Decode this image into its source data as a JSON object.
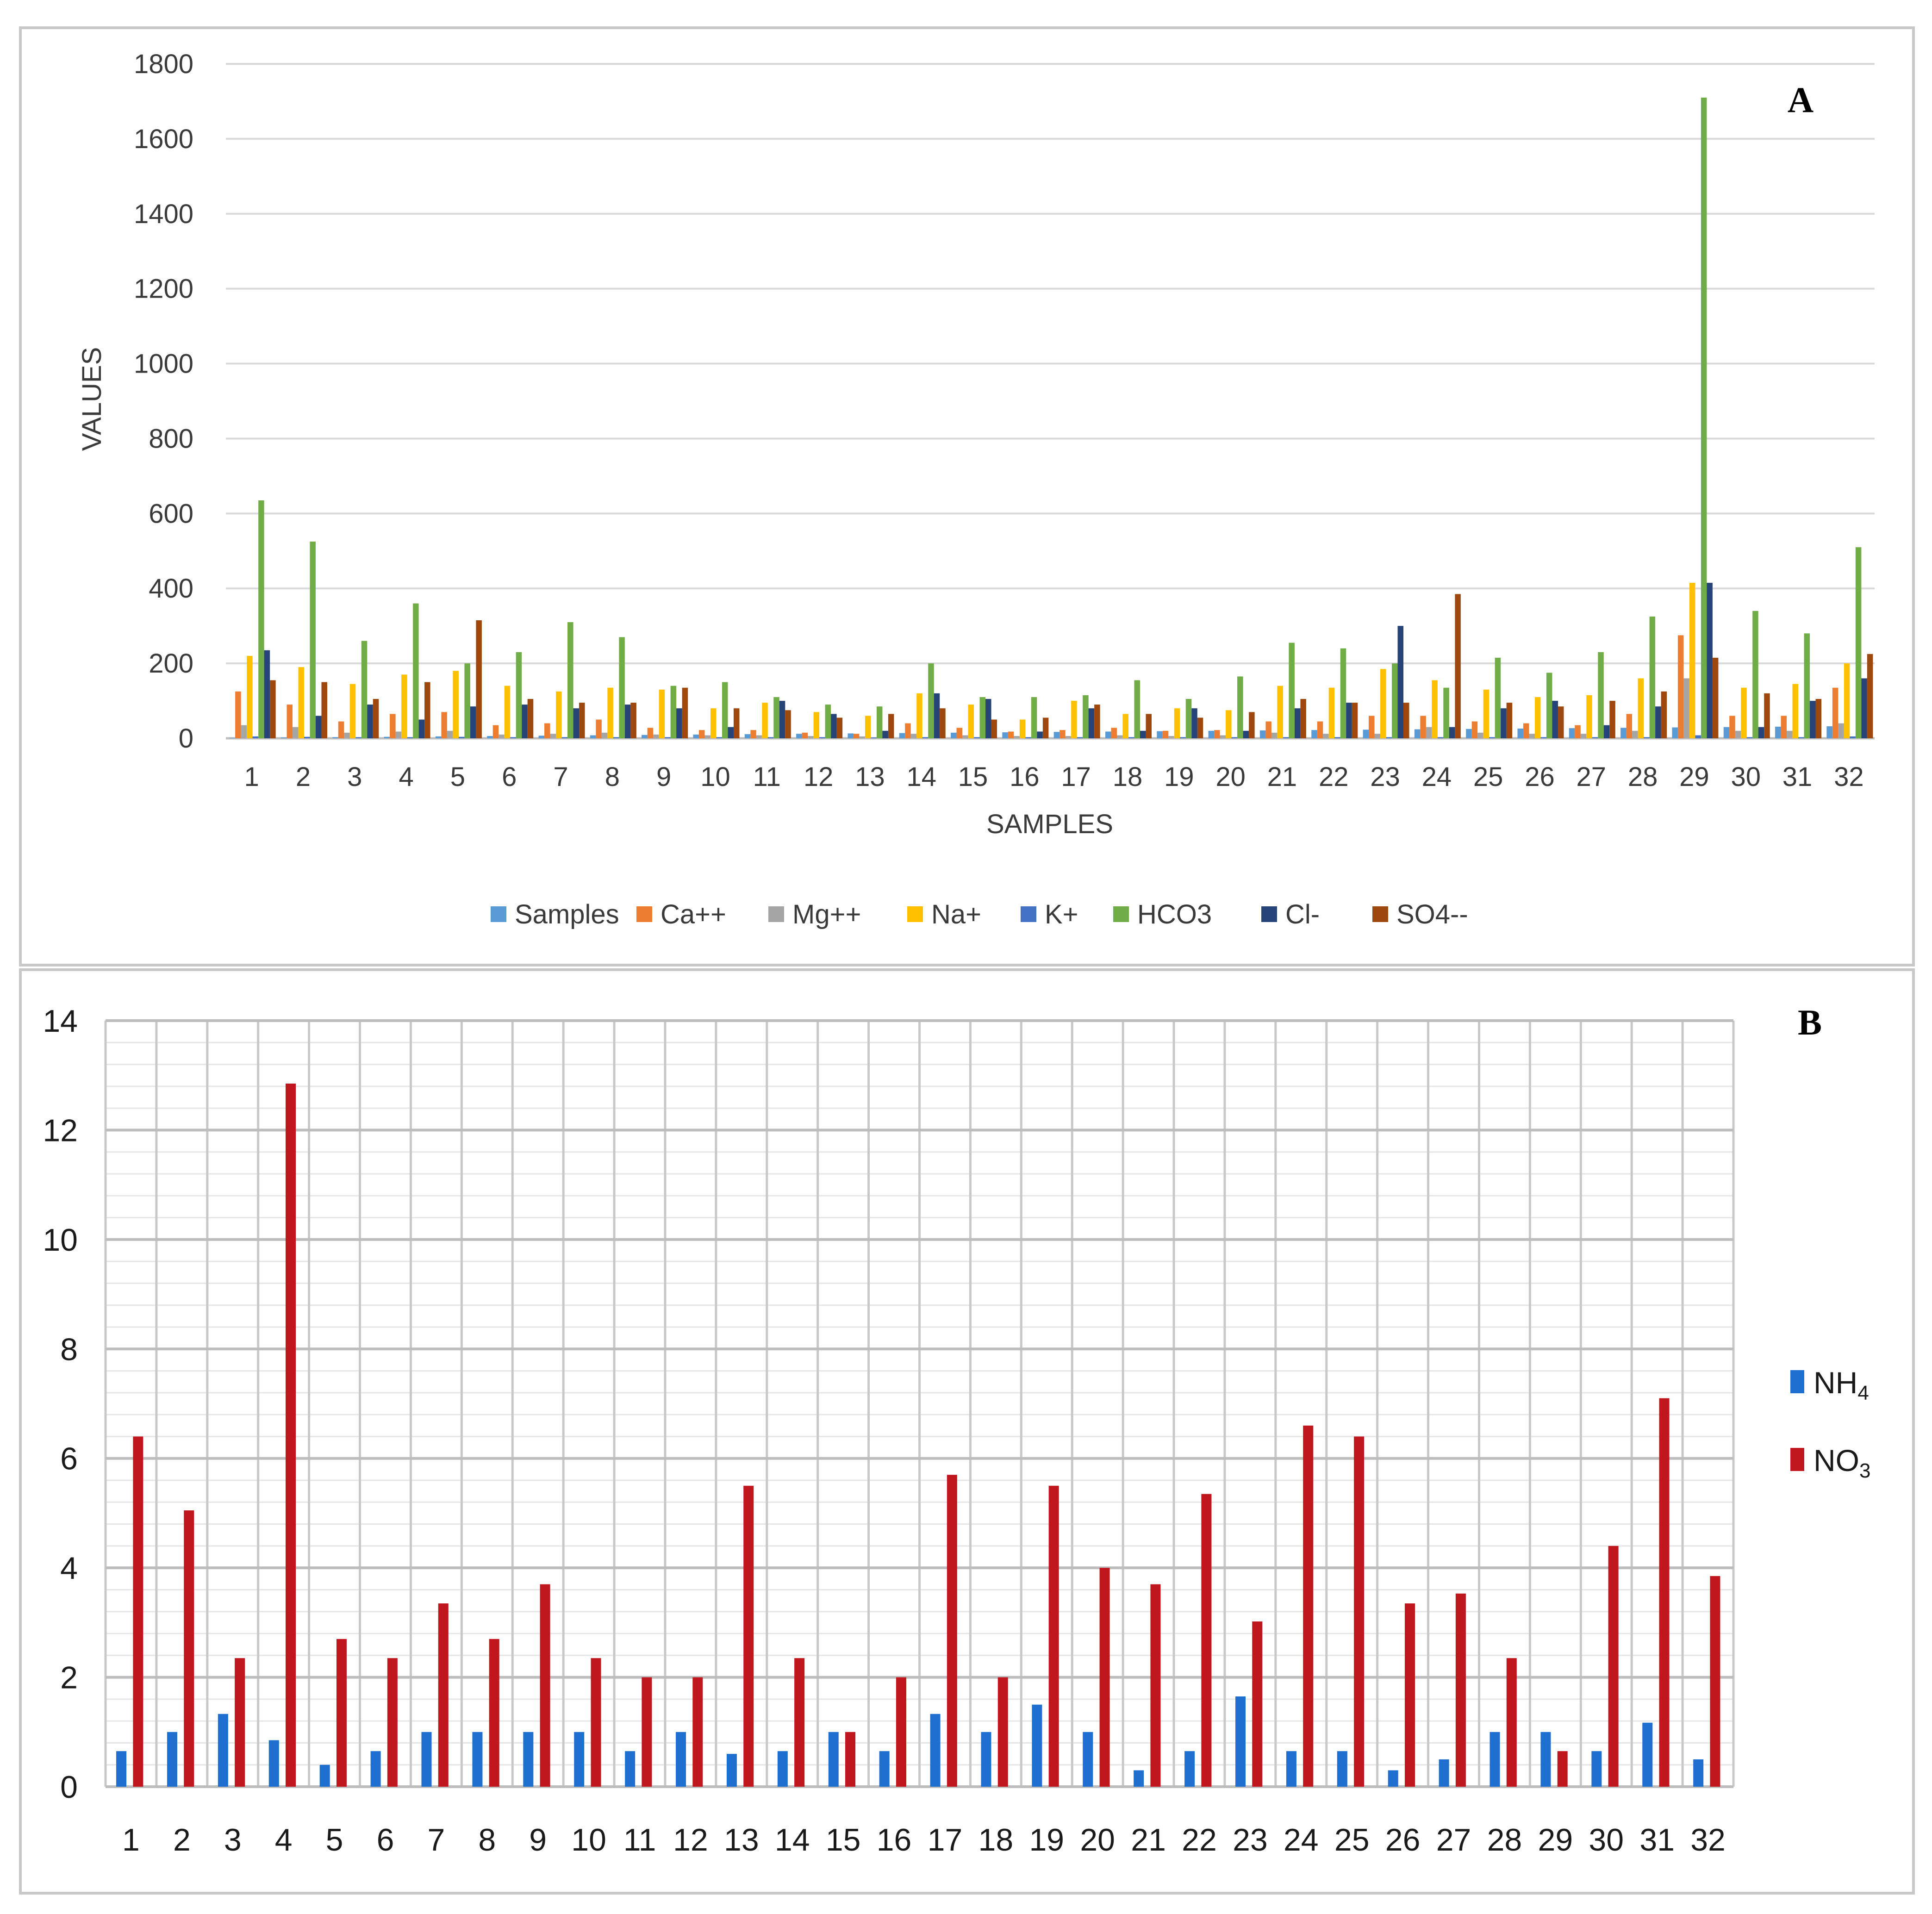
{
  "chart_data": [
    {
      "type": "bar",
      "panel_label": "A",
      "xlabel": "SAMPLES",
      "ylabel": "VALUES",
      "ylim": [
        0,
        1800
      ],
      "yticks": [
        0,
        200,
        400,
        600,
        800,
        1000,
        1200,
        1400,
        1600,
        1800
      ],
      "grid": "horizontal",
      "legend": "bottom",
      "categories": [
        "1",
        "2",
        "3",
        "4",
        "5",
        "6",
        "7",
        "8",
        "9",
        "10",
        "11",
        "12",
        "13",
        "14",
        "15",
        "16",
        "17",
        "18",
        "19",
        "20",
        "21",
        "22",
        "23",
        "24",
        "25",
        "26",
        "27",
        "28",
        "29",
        "30",
        "31",
        "32"
      ],
      "series": [
        {
          "name": "Samples",
          "color": "#5b9bd5",
          "values": [
            1,
            2,
            3,
            4,
            5,
            6,
            7,
            8,
            9,
            10,
            11,
            12,
            13,
            14,
            15,
            16,
            17,
            18,
            19,
            20,
            21,
            22,
            23,
            24,
            25,
            26,
            27,
            28,
            29,
            30,
            31,
            32
          ]
        },
        {
          "name": "Ca++",
          "color": "#ed7d31",
          "values": [
            125,
            90,
            45,
            65,
            70,
            35,
            40,
            50,
            28,
            22,
            22,
            15,
            12,
            40,
            28,
            18,
            22,
            28,
            20,
            22,
            45,
            45,
            60,
            60,
            45,
            40,
            35,
            65,
            275,
            60,
            60,
            135
          ]
        },
        {
          "name": "Mg++",
          "color": "#a5a5a5",
          "values": [
            35,
            30,
            15,
            18,
            20,
            10,
            12,
            15,
            10,
            8,
            8,
            6,
            5,
            12,
            8,
            6,
            6,
            8,
            6,
            8,
            15,
            12,
            12,
            30,
            15,
            12,
            12,
            20,
            160,
            20,
            20,
            40
          ]
        },
        {
          "name": "Na+",
          "color": "#ffc000",
          "values": [
            220,
            190,
            145,
            170,
            180,
            140,
            125,
            135,
            130,
            80,
            95,
            70,
            60,
            120,
            90,
            50,
            100,
            65,
            80,
            75,
            140,
            135,
            185,
            155,
            130,
            110,
            115,
            160,
            415,
            135,
            145,
            200
          ]
        },
        {
          "name": "K+",
          "color": "#4472c4",
          "values": [
            5,
            4,
            3,
            3,
            4,
            3,
            3,
            3,
            3,
            3,
            3,
            3,
            2,
            3,
            3,
            3,
            3,
            3,
            3,
            3,
            3,
            3,
            3,
            3,
            3,
            3,
            3,
            3,
            8,
            3,
            3,
            5
          ]
        },
        {
          "name": "HCO3",
          "color": "#70ad47",
          "values": [
            635,
            525,
            260,
            360,
            200,
            230,
            310,
            270,
            140,
            150,
            110,
            90,
            85,
            200,
            110,
            110,
            115,
            155,
            105,
            165,
            255,
            240,
            200,
            135,
            215,
            175,
            230,
            325,
            1710,
            340,
            280,
            510
          ]
        },
        {
          "name": "Cl-",
          "color": "#264478",
          "values": [
            235,
            60,
            90,
            50,
            85,
            90,
            80,
            90,
            80,
            30,
            100,
            65,
            20,
            120,
            105,
            18,
            80,
            20,
            80,
            20,
            80,
            95,
            300,
            30,
            80,
            100,
            35,
            85,
            415,
            30,
            100,
            160
          ]
        },
        {
          "name": "SO4--",
          "color": "#9e480e",
          "values": [
            155,
            150,
            105,
            150,
            315,
            105,
            95,
            95,
            135,
            80,
            75,
            55,
            65,
            80,
            50,
            55,
            90,
            65,
            55,
            70,
            105,
            95,
            95,
            385,
            95,
            85,
            100,
            125,
            215,
            120,
            105,
            225
          ]
        }
      ]
    },
    {
      "type": "bar",
      "panel_label": "B",
      "xlabel": "",
      "ylabel": "",
      "ylim": [
        0,
        14
      ],
      "yticks": [
        0,
        2,
        4,
        6,
        8,
        10,
        12,
        14
      ],
      "grid": "both",
      "legend": "right",
      "categories": [
        "1",
        "2",
        "3",
        "4",
        "5",
        "6",
        "7",
        "8",
        "9",
        "10",
        "11",
        "12",
        "13",
        "14",
        "15",
        "16",
        "17",
        "18",
        "19",
        "20",
        "21",
        "22",
        "23",
        "24",
        "25",
        "26",
        "27",
        "28",
        "29",
        "30",
        "31",
        "32"
      ],
      "series": [
        {
          "name": "NH4",
          "name_base": "NH",
          "name_sub": "4",
          "color": "#1f6fd1",
          "values": [
            0.65,
            1.0,
            1.33,
            0.85,
            0.4,
            0.65,
            1.0,
            1.0,
            1.0,
            1.0,
            0.65,
            1.0,
            0.6,
            0.65,
            1.0,
            0.65,
            1.33,
            1.0,
            1.5,
            1.0,
            0.3,
            0.65,
            1.65,
            0.65,
            0.65,
            0.3,
            0.5,
            1.0,
            1.0,
            0.65,
            1.17,
            0.5
          ]
        },
        {
          "name": "NO3",
          "name_base": "NO",
          "name_sub": "3",
          "color": "#c0161d",
          "values": [
            6.4,
            5.05,
            2.35,
            12.85,
            2.7,
            2.35,
            3.35,
            2.7,
            3.7,
            2.35,
            2.0,
            2.0,
            5.5,
            2.35,
            1.0,
            2.0,
            5.7,
            2.0,
            5.5,
            4.0,
            3.7,
            5.35,
            3.02,
            6.6,
            6.4,
            3.35,
            3.53,
            2.35,
            0.65,
            4.4,
            7.1,
            3.85
          ]
        }
      ]
    }
  ]
}
